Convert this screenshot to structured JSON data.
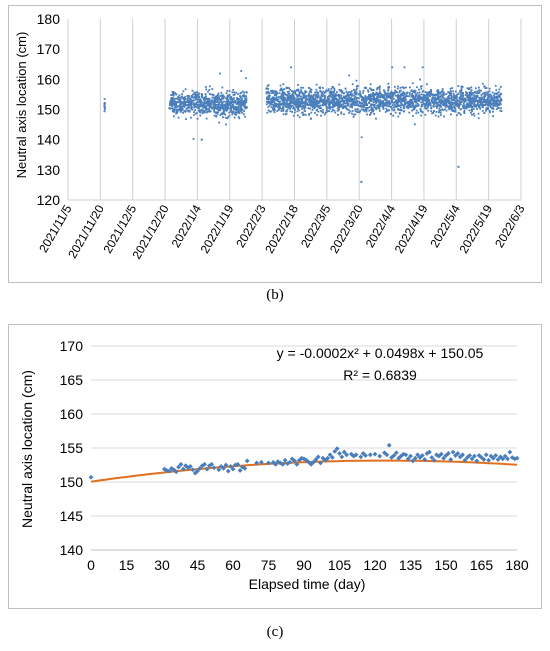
{
  "captions": {
    "b": "(b)",
    "c": "(c)"
  },
  "chart_data": [
    {
      "type": "scatter",
      "title": "",
      "ylabel": "Neutral axis location (cm)",
      "xlabel": "",
      "x_tick_labels": [
        "2021/11/5",
        "2021/11/20",
        "2021/12/5",
        "2021/12/20",
        "2022/1/4",
        "2022/1/19",
        "2022/2/3",
        "2022/2/18",
        "2022/3/5",
        "2022/3/20",
        "2022/4/4",
        "2022/4/19",
        "2022/5/4",
        "2022/5/19",
        "2022/6/3"
      ],
      "y_ticks": [
        120,
        130,
        140,
        150,
        160,
        170,
        180
      ],
      "ylim": [
        120,
        180
      ],
      "grid": "vertical",
      "marker_color": "#4a7ebb",
      "series": [
        {
          "segments": [
            {
              "x_start": "2021/11/22",
              "x_end": "2021/11/22",
              "y_mean": 151,
              "y_min": 148.5,
              "y_max": 153.5
            },
            {
              "x_start": "2021/12/22",
              "x_end": "2022/1/27",
              "y_mean": 152,
              "y_min": 140,
              "y_max": 163.5
            },
            {
              "x_start": "2022/2/5",
              "x_end": "2022/5/25",
              "y_mean": 153,
              "y_min": 131,
              "y_max": 164
            }
          ],
          "outliers": [
            {
              "x": "2022/3/21",
              "y": 126
            },
            {
              "x": "2022/5/5",
              "y": 131
            },
            {
              "x": "2022/1/6",
              "y": 140
            }
          ]
        }
      ]
    },
    {
      "type": "scatter",
      "title": "",
      "xlabel": "Elapsed time (day)",
      "ylabel": "Neutral axis location (cm)",
      "x_ticks": [
        0,
        15,
        30,
        45,
        60,
        75,
        90,
        105,
        120,
        135,
        150,
        165,
        180
      ],
      "y_ticks": [
        140,
        145,
        150,
        155,
        160,
        165,
        170
      ],
      "xlim": [
        0,
        180
      ],
      "ylim": [
        140,
        170
      ],
      "grid": "horizontal",
      "marker_color": "#4a7ebb",
      "trendline_color": "#e07020",
      "trendline": {
        "a": -0.0002,
        "b": 0.0498,
        "c": 150.05
      },
      "annotations": [
        "y = -0.0002x² + 0.0498x + 150.05",
        "R² = 0.6839"
      ],
      "points": [
        [
          0,
          150.7
        ],
        [
          31,
          151.9
        ],
        [
          32,
          151.7
        ],
        [
          33,
          151.6
        ],
        [
          34,
          152.0
        ],
        [
          35,
          151.8
        ],
        [
          36,
          151.5
        ],
        [
          37,
          152.2
        ],
        [
          38,
          152.6
        ],
        [
          39,
          151.9
        ],
        [
          40,
          152.4
        ],
        [
          41,
          152.1
        ],
        [
          42,
          152.3
        ],
        [
          43,
          151.8
        ],
        [
          44,
          151.3
        ],
        [
          45,
          151.6
        ],
        [
          46,
          152.0
        ],
        [
          47,
          152.4
        ],
        [
          48,
          152.6
        ],
        [
          49,
          151.9
        ],
        [
          50,
          152.4
        ],
        [
          51,
          152.6
        ],
        [
          52,
          152.1
        ],
        [
          54,
          151.8
        ],
        [
          55,
          152.3
        ],
        [
          56,
          152.0
        ],
        [
          57,
          152.5
        ],
        [
          58,
          151.6
        ],
        [
          59,
          152.3
        ],
        [
          60,
          151.9
        ],
        [
          61,
          152.5
        ],
        [
          62,
          152.6
        ],
        [
          63,
          151.7
        ],
        [
          64,
          152.2
        ],
        [
          65,
          152.0
        ],
        [
          66,
          153.1
        ],
        [
          70,
          152.8
        ],
        [
          72,
          152.9
        ],
        [
          75,
          152.8
        ],
        [
          77,
          152.9
        ],
        [
          78,
          152.6
        ],
        [
          79,
          153.0
        ],
        [
          80,
          152.8
        ],
        [
          81,
          152.6
        ],
        [
          82,
          153.2
        ],
        [
          83,
          152.7
        ],
        [
          84,
          152.9
        ],
        [
          85,
          153.4
        ],
        [
          86,
          153.1
        ],
        [
          87,
          152.6
        ],
        [
          88,
          153.2
        ],
        [
          89,
          153.5
        ],
        [
          90,
          153.4
        ],
        [
          91,
          153.2
        ],
        [
          92,
          152.9
        ],
        [
          93,
          152.6
        ],
        [
          94,
          152.9
        ],
        [
          95,
          153.3
        ],
        [
          96,
          153.7
        ],
        [
          97,
          152.8
        ],
        [
          98,
          153.5
        ],
        [
          99,
          153.2
        ],
        [
          100,
          153.5
        ],
        [
          101,
          154.0
        ],
        [
          102,
          153.6
        ],
        [
          103,
          154.5
        ],
        [
          104,
          154.9
        ],
        [
          105,
          154.2
        ],
        [
          106,
          153.7
        ],
        [
          107,
          154.4
        ],
        [
          108,
          154.0
        ],
        [
          110,
          154.1
        ],
        [
          111,
          153.8
        ],
        [
          112,
          154.0
        ],
        [
          114,
          153.7
        ],
        [
          115,
          154.2
        ],
        [
          116,
          153.9
        ],
        [
          118,
          154.0
        ],
        [
          120,
          154.1
        ],
        [
          122,
          153.8
        ],
        [
          124,
          154.3
        ],
        [
          125,
          154.0
        ],
        [
          126,
          155.4
        ],
        [
          127,
          153.6
        ],
        [
          128,
          153.9
        ],
        [
          129,
          154.3
        ],
        [
          130,
          153.5
        ],
        [
          131,
          153.8
        ],
        [
          132,
          154.1
        ],
        [
          133,
          154.0
        ],
        [
          134,
          153.4
        ],
        [
          135,
          153.8
        ],
        [
          136,
          153.1
        ],
        [
          137,
          153.5
        ],
        [
          138,
          154.0
        ],
        [
          139,
          153.6
        ],
        [
          140,
          153.9
        ],
        [
          141,
          153.3
        ],
        [
          142,
          154.2
        ],
        [
          143,
          154.4
        ],
        [
          144,
          153.6
        ],
        [
          145,
          153.2
        ],
        [
          146,
          154.0
        ],
        [
          147,
          153.8
        ],
        [
          148,
          154.1
        ],
        [
          149,
          153.5
        ],
        [
          150,
          153.9
        ],
        [
          151,
          154.2
        ],
        [
          152,
          153.3
        ],
        [
          153,
          154.4
        ],
        [
          154,
          153.9
        ],
        [
          155,
          154.2
        ],
        [
          156,
          153.7
        ],
        [
          157,
          154.0
        ],
        [
          158,
          153.2
        ],
        [
          159,
          153.6
        ],
        [
          160,
          153.9
        ],
        [
          161,
          153.4
        ],
        [
          162,
          153.8
        ],
        [
          163,
          153.1
        ],
        [
          164,
          153.9
        ],
        [
          165,
          153.6
        ],
        [
          166,
          153.3
        ],
        [
          167,
          154.0
        ],
        [
          168,
          153.2
        ],
        [
          169,
          153.8
        ],
        [
          170,
          153.5
        ],
        [
          171,
          153.9
        ],
        [
          172,
          153.3
        ],
        [
          173,
          153.7
        ],
        [
          174,
          153.4
        ],
        [
          175,
          153.8
        ],
        [
          176,
          153.4
        ],
        [
          177,
          154.4
        ],
        [
          178,
          153.6
        ],
        [
          179,
          153.4
        ],
        [
          180,
          153.5
        ]
      ]
    }
  ]
}
